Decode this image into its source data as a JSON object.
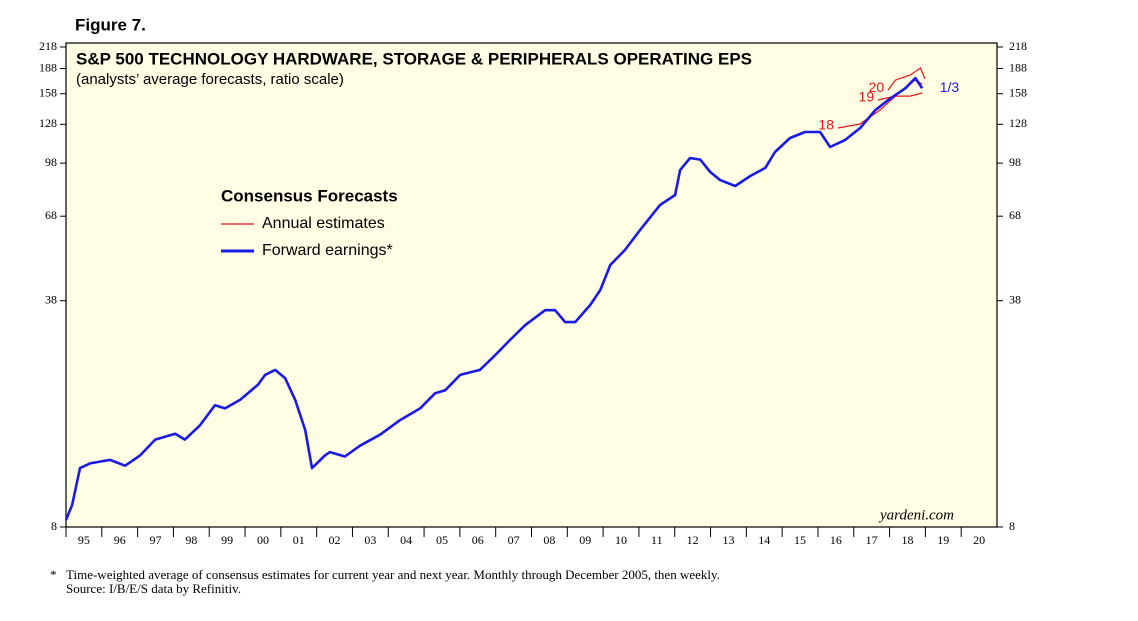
{
  "chart_data": {
    "type": "line",
    "figure_label": "Figure 7.",
    "title": "S&P 500 TECHNOLOGY HARDWARE, STORAGE & PERIPHERALS OPERATING EPS",
    "subtitle": "(analysts’ average forecasts, ratio scale)",
    "legend_title": "Consensus Forecasts",
    "yscale": "log",
    "xlim": [
      1995,
      2021
    ],
    "ylim": [
      8,
      218
    ],
    "yticks": [
      8,
      38,
      68,
      98,
      128,
      158,
      188,
      218
    ],
    "xticks": [
      {
        "value": 1995.5,
        "label": "95"
      },
      {
        "value": 1996.5,
        "label": "96"
      },
      {
        "value": 1997.5,
        "label": "97"
      },
      {
        "value": 1998.5,
        "label": "98"
      },
      {
        "value": 1999.5,
        "label": "99"
      },
      {
        "value": 2000.5,
        "label": "00"
      },
      {
        "value": 2001.5,
        "label": "01"
      },
      {
        "value": 2002.5,
        "label": "02"
      },
      {
        "value": 2003.5,
        "label": "03"
      },
      {
        "value": 2004.5,
        "label": "04"
      },
      {
        "value": 2005.5,
        "label": "05"
      },
      {
        "value": 2006.5,
        "label": "06"
      },
      {
        "value": 2007.5,
        "label": "07"
      },
      {
        "value": 2008.5,
        "label": "08"
      },
      {
        "value": 2009.5,
        "label": "09"
      },
      {
        "value": 2010.5,
        "label": "10"
      },
      {
        "value": 2011.5,
        "label": "11"
      },
      {
        "value": 2012.5,
        "label": "12"
      },
      {
        "value": 2013.5,
        "label": "13"
      },
      {
        "value": 2014.5,
        "label": "14"
      },
      {
        "value": 2015.5,
        "label": "15"
      },
      {
        "value": 2016.5,
        "label": "16"
      },
      {
        "value": 2017.5,
        "label": "17"
      },
      {
        "value": 2018.5,
        "label": "18"
      },
      {
        "value": 2019.5,
        "label": "19"
      },
      {
        "value": 2020.5,
        "label": "20"
      }
    ],
    "series": [
      {
        "name": "Annual estimates",
        "color": "#e8141b",
        "lines": [
          {
            "label": "18",
            "x": [
              2016.56,
              2017.17,
              2017.73,
              2018.29,
              2018.71,
              2018.91
            ],
            "values": [
              124.8,
              128.3,
              141.2,
              159.9,
              173.6,
              168.9
            ]
          },
          {
            "label": "19",
            "x": [
              2017.68,
              2018.16,
              2018.58,
              2018.91
            ],
            "values": [
              151.3,
              155.5,
              155.5,
              158.8
            ]
          },
          {
            "label": "20",
            "x": [
              2017.96,
              2018.16,
              2018.58,
              2018.86,
              2018.99
            ],
            "values": [
              162,
              173.6,
              179.8,
              188.6,
              175
            ]
          }
        ]
      },
      {
        "name": "Forward earnings*",
        "color": "#1a1ae6",
        "x": [
          1995.0,
          1995.17,
          1995.39,
          1995.67,
          1996.23,
          1996.65,
          1997.07,
          1997.49,
          1998.05,
          1998.32,
          1998.74,
          1999.16,
          1999.44,
          1999.86,
          2000.36,
          2000.56,
          2000.84,
          2001.12,
          2001.4,
          2001.68,
          2001.87,
          2002.04,
          2002.23,
          2002.37,
          2002.79,
          2003.21,
          2003.77,
          2004.33,
          2004.89,
          2005.31,
          2005.59,
          2006.01,
          2006.56,
          2006.98,
          2007.4,
          2007.82,
          2008.38,
          2008.66,
          2008.94,
          2009.22,
          2009.64,
          2009.92,
          2010.2,
          2010.61,
          2011.03,
          2011.59,
          2012.01,
          2012.15,
          2012.43,
          2012.71,
          2012.99,
          2013.27,
          2013.69,
          2014.11,
          2014.53,
          2014.8,
          2015.22,
          2015.64,
          2016.06,
          2016.34,
          2016.76,
          2017.18,
          2017.6,
          2018.02,
          2018.44,
          2018.72,
          2018.91
        ],
        "values": [
          8.4,
          9.3,
          12.0,
          12.4,
          12.7,
          12.2,
          13.1,
          14.6,
          15.2,
          14.6,
          16.1,
          18.5,
          18.1,
          19.2,
          21.3,
          22.8,
          23.6,
          22.3,
          19.2,
          15.6,
          12.0,
          12.5,
          13.1,
          13.4,
          13.0,
          14.0,
          15.1,
          16.7,
          18.1,
          20.1,
          20.5,
          22.8,
          23.6,
          26.1,
          29.0,
          32.1,
          35.6,
          35.6,
          32.8,
          32.8,
          36.9,
          40.9,
          48.6,
          53.9,
          61.8,
          73.4,
          78.7,
          93.4,
          101.5,
          100.4,
          92.2,
          87.2,
          83.7,
          89.7,
          94.8,
          105.8,
          116.5,
          121.4,
          121.4,
          109.5,
          115,
          124.8,
          141.2,
          153,
          164,
          176,
          164
        ]
      }
    ],
    "annotations": [
      {
        "text": "1/3",
        "x": 2019.4,
        "y": 164,
        "color": "#1a1ae6"
      }
    ],
    "brand": "yardeni.com",
    "footnote_marker": "*",
    "notes": [
      "Time-weighted average of consensus estimates for current year and next year. Monthly through December 2005, then weekly.",
      "Source: I/B/E/S data by Refinitiv."
    ],
    "background": "#fffde4"
  }
}
